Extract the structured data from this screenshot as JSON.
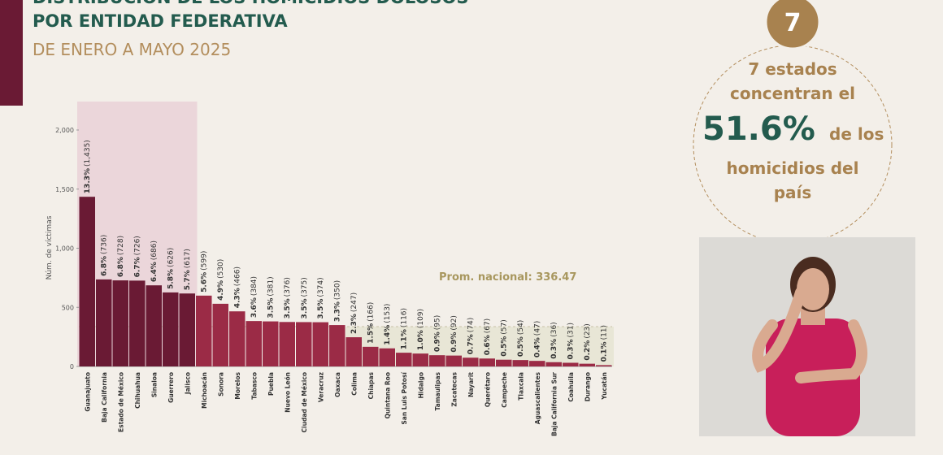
{
  "header": {
    "title_lines": [
      "DISTRIBUCIÓN DE LOS HOMICIDIOS DOLOSOS",
      "POR ENTIDAD FEDERATIVA"
    ],
    "subtitle": "DE ENERO A MAYO 2025"
  },
  "chart_data": {
    "type": "bar",
    "y_label": "Núm. de víctimas",
    "categories": [
      "Guanajuato",
      "Baja California",
      "Estado de México",
      "Chihuahua",
      "Sinaloa",
      "Guerrero",
      "Jalisco",
      "Michoacán",
      "Sonora",
      "Morelos",
      "Tabasco",
      "Puebla",
      "Nuevo León",
      "Ciudad de México",
      "Veracruz",
      "Oaxaca",
      "Colima",
      "Chiapas",
      "Quintana Roo",
      "San Luis Potosí",
      "Hidalgo",
      "Tamaulipas",
      "Zacatecas",
      "Nayarit",
      "Querétaro",
      "Campeche",
      "Tlaxcala",
      "Aguascalientes",
      "Baja California Sur",
      "Coahuila",
      "Durango",
      "Yucatán"
    ],
    "values": [
      1435,
      736,
      728,
      726,
      686,
      626,
      617,
      599,
      530,
      466,
      384,
      381,
      376,
      375,
      374,
      350,
      247,
      166,
      153,
      116,
      109,
      95,
      92,
      74,
      67,
      57,
      54,
      47,
      36,
      31,
      23,
      11
    ],
    "value_labels": [
      "(1,435)",
      "(736)",
      "(728)",
      "(726)",
      "(686)",
      "(626)",
      "(617)",
      "(599)",
      "(530)",
      "(466)",
      "(384)",
      "(381)",
      "(376)",
      "(375)",
      "(374)",
      "(350)",
      "(247)",
      "(166)",
      "(153)",
      "(116)",
      "(109)",
      "(95)",
      "(92)",
      "(74)",
      "(67)",
      "(57)",
      "(54)",
      "(47)",
      "(36)",
      "(31)",
      "(23)",
      "(11)"
    ],
    "share_labels": [
      "13.3%",
      "6.8%",
      "6.8%",
      "6.7%",
      "6.4%",
      "5.8%",
      "5.7%",
      "5.6%",
      "4.9%",
      "4.3%",
      "3.6%",
      "3.5%",
      "3.5%",
      "3.5%",
      "3.5%",
      "3.3%",
      "2.3%",
      "1.5%",
      "1.4%",
      "1.1%",
      "1.0%",
      "0.9%",
      "0.9%",
      "0.7%",
      "0.6%",
      "0.5%",
      "0.5%",
      "0.4%",
      "0.3%",
      "0.3%",
      "0.2%",
      "0.1%"
    ],
    "colors": [
      "#6a1a34",
      "#6a1a34",
      "#6a1a34",
      "#6a1a34",
      "#6a1a34",
      "#6a1a34",
      "#6a1a34",
      "#9b2b46",
      "#9b2b46",
      "#9b2b46",
      "#9b2b46",
      "#9b2b46",
      "#9b2b46",
      "#9b2b46",
      "#9b2b46",
      "#9b2b46",
      "#9b2b46",
      "#9b2b46",
      "#9b2b46",
      "#9b2b46",
      "#9b2b46",
      "#9b2b46",
      "#9b2b46",
      "#9b2b46",
      "#9b2b46",
      "#9b2b46",
      "#9b2b46",
      "#9b2b46",
      "#9b2b46",
      "#9b2b46",
      "#9b2b46",
      "#9b2b46"
    ],
    "average": 336.47,
    "average_label": "Prom. nacional: 336.47",
    "ylim": [
      0,
      2000
    ],
    "yticks": [
      0,
      500,
      {
        "value": 1000,
        "label": "1,000"
      },
      {
        "value": 1500,
        "label": "1,500"
      },
      {
        "value": 2000,
        "label": "2,000"
      }
    ]
  },
  "callout": {
    "badge": "7",
    "lines": [
      "7 estados",
      "concentran el"
    ],
    "big": "51.6%",
    "after_big": "de los",
    "tail_lines": [
      "homicidios del",
      "país"
    ]
  }
}
